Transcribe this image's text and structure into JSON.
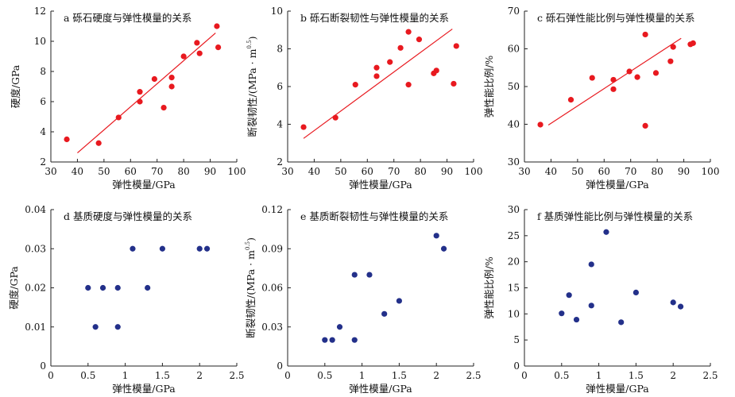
{
  "colors": {
    "red": "#e8191f",
    "blue": "#23308a",
    "axis": "#222222"
  },
  "chart_data": [
    {
      "id": "a",
      "type": "scatter",
      "title": "a 砾石硬度与弹性模量的关系",
      "xlabel": "弹性模量/GPa",
      "ylabel": "硬度/GPa",
      "ylabel_sup": "",
      "xlim": [
        30,
        100
      ],
      "ylim": [
        2,
        12
      ],
      "xticks": [
        30,
        40,
        50,
        60,
        70,
        80,
        90,
        100
      ],
      "yticks": [
        2,
        4,
        6,
        8,
        10,
        12
      ],
      "color": "red",
      "points": [
        [
          36,
          3.5
        ],
        [
          48,
          3.25
        ],
        [
          55.5,
          4.95
        ],
        [
          63.5,
          6.65
        ],
        [
          63.5,
          6.0
        ],
        [
          69,
          7.5
        ],
        [
          72.5,
          5.6
        ],
        [
          75.5,
          7.0
        ],
        [
          75.5,
          7.6
        ],
        [
          80,
          9.0
        ],
        [
          85,
          9.9
        ],
        [
          86,
          9.2
        ],
        [
          92.5,
          11.0
        ],
        [
          93,
          9.6
        ]
      ],
      "fit": [
        [
          40,
          2.6
        ],
        [
          92,
          10.55
        ]
      ]
    },
    {
      "id": "b",
      "type": "scatter",
      "title": "b 砾石断裂韧性与弹性模量的关系",
      "xlabel": "弹性模量/GPa",
      "ylabel": "断裂韧性/(MPa · m",
      "ylabel_sup": "0.5",
      "xlim": [
        30,
        100
      ],
      "ylim": [
        2,
        10
      ],
      "xticks": [
        30,
        40,
        50,
        60,
        70,
        80,
        90,
        100
      ],
      "yticks": [
        2,
        4,
        6,
        8,
        10
      ],
      "color": "red",
      "points": [
        [
          36,
          3.85
        ],
        [
          48,
          4.35
        ],
        [
          55.5,
          6.1
        ],
        [
          63.5,
          7.0
        ],
        [
          63.5,
          6.55
        ],
        [
          68.5,
          7.3
        ],
        [
          72.5,
          8.05
        ],
        [
          75.5,
          8.9
        ],
        [
          75.5,
          6.1
        ],
        [
          79.5,
          8.5
        ],
        [
          85,
          6.7
        ],
        [
          86,
          6.85
        ],
        [
          92.5,
          6.15
        ],
        [
          93.5,
          8.15
        ]
      ],
      "fit": [
        [
          36,
          3.25
        ],
        [
          92,
          9.05
        ]
      ]
    },
    {
      "id": "c",
      "type": "scatter",
      "title": "c 砾石弹性能比例与弹性模量的关系",
      "xlabel": "弹性模量/GPa",
      "ylabel": "弹性能比例/%",
      "ylabel_sup": "",
      "xlim": [
        30,
        100
      ],
      "ylim": [
        30,
        70
      ],
      "xticks": [
        30,
        40,
        50,
        60,
        70,
        80,
        90,
        100
      ],
      "yticks": [
        30,
        40,
        50,
        60,
        70
      ],
      "color": "red",
      "points": [
        [
          36,
          39.9
        ],
        [
          47.5,
          46.5
        ],
        [
          55.5,
          52.3
        ],
        [
          63.5,
          49.3
        ],
        [
          63.5,
          51.8
        ],
        [
          69.5,
          54.0
        ],
        [
          72.5,
          52.5
        ],
        [
          75.5,
          63.8
        ],
        [
          75.5,
          39.6
        ],
        [
          79.5,
          53.6
        ],
        [
          85,
          56.7
        ],
        [
          86,
          60.5
        ],
        [
          92.5,
          61.2
        ],
        [
          93.5,
          61.5
        ]
      ],
      "fit": [
        [
          39,
          39.8
        ],
        [
          89,
          62.8
        ]
      ]
    },
    {
      "id": "d",
      "type": "scatter",
      "title": "d 基质硬度与弹性模量的关系",
      "xlabel": "弹性模量/GPa",
      "ylabel": "硬度/GPa",
      "ylabel_sup": "",
      "xlim": [
        0,
        2.5
      ],
      "ylim": [
        0,
        0.04
      ],
      "xticks": [
        "0",
        "0.5",
        "1",
        "1.5",
        "2",
        "2.5"
      ],
      "yticks": [
        "0",
        "0.01",
        "0.02",
        "0.03",
        "0.04"
      ],
      "color": "blue",
      "points": [
        [
          0.5,
          0.02
        ],
        [
          0.6,
          0.01
        ],
        [
          0.7,
          0.02
        ],
        [
          0.9,
          0.02
        ],
        [
          0.9,
          0.01
        ],
        [
          1.1,
          0.03
        ],
        [
          1.3,
          0.02
        ],
        [
          1.5,
          0.03
        ],
        [
          2.0,
          0.03
        ],
        [
          2.1,
          0.03
        ]
      ],
      "fit": null
    },
    {
      "id": "e",
      "type": "scatter",
      "title": "e 基质断裂韧性与弹性模量的关系",
      "xlabel": "弹性模量/GPa",
      "ylabel": "断裂韧性/(MPa · m",
      "ylabel_sup": "0.5",
      "xlim": [
        0,
        2.5
      ],
      "ylim": [
        0,
        0.12
      ],
      "xticks": [
        "0",
        "0.5",
        "1",
        "1.5",
        "2",
        "2.5"
      ],
      "yticks": [
        "0",
        "0.03",
        "0.06",
        "0.09",
        "0.12"
      ],
      "color": "blue",
      "points": [
        [
          0.5,
          0.02
        ],
        [
          0.6,
          0.02
        ],
        [
          0.7,
          0.03
        ],
        [
          0.9,
          0.07
        ],
        [
          0.9,
          0.02
        ],
        [
          1.1,
          0.07
        ],
        [
          1.3,
          0.04
        ],
        [
          1.5,
          0.05
        ],
        [
          2.0,
          0.1
        ],
        [
          2.1,
          0.09
        ]
      ],
      "fit": null
    },
    {
      "id": "f",
      "type": "scatter",
      "title": "f 基质弹性能比例与弹性模量的关系",
      "xlabel": "弹性模量/GPa",
      "ylabel": "弹性能比例/%",
      "ylabel_sup": "",
      "xlim": [
        0,
        2.5
      ],
      "ylim": [
        0,
        30
      ],
      "xticks": [
        "0",
        "0.5",
        "1",
        "1.5",
        "2",
        "2.5"
      ],
      "yticks": [
        "0",
        "5",
        "10",
        "15",
        "20",
        "25",
        "30"
      ],
      "color": "blue",
      "points": [
        [
          0.5,
          10.1
        ],
        [
          0.6,
          13.6
        ],
        [
          0.7,
          8.9
        ],
        [
          0.9,
          19.5
        ],
        [
          0.9,
          11.6
        ],
        [
          1.1,
          25.7
        ],
        [
          1.3,
          8.4
        ],
        [
          1.5,
          14.1
        ],
        [
          2.0,
          12.2
        ],
        [
          2.1,
          11.4
        ]
      ],
      "fit": null
    }
  ]
}
